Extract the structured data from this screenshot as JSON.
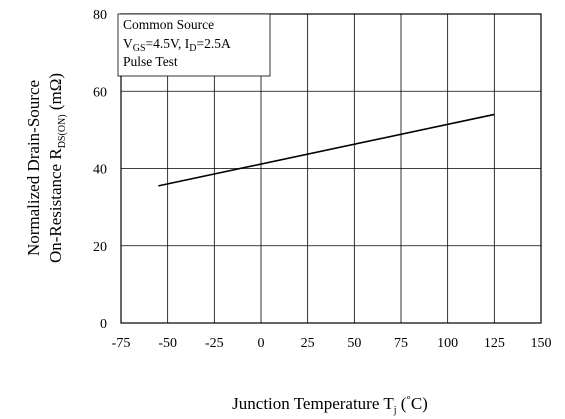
{
  "chart_data": {
    "type": "line",
    "title": "",
    "annotation": {
      "line1": "Common Source",
      "line2": {
        "v": "V",
        "v_sub": "GS",
        "v_val": "=4.5V, I",
        "i_sub": "D",
        "i_val": "=2.5A"
      },
      "line3": "Pulse Test"
    },
    "xlabel": {
      "main": "Junction Temperature  T",
      "sub": "j",
      "unit": " (",
      "degree": "°",
      "unit_end": "C)"
    },
    "ylabel": {
      "line1": "Normalized Drain-Source",
      "line2_main": "On-Resistance  R",
      "line2_sub": "DS(ON)",
      "line2_unit": " (mΩ)"
    },
    "xlim": [
      -75,
      150
    ],
    "ylim": [
      0,
      80
    ],
    "xticks": [
      -75,
      -50,
      -25,
      0,
      25,
      50,
      75,
      100,
      125,
      150
    ],
    "yticks": [
      0,
      20,
      40,
      60,
      80
    ],
    "grid": true,
    "series": [
      {
        "x": [
          -55,
          125
        ],
        "y": [
          35.5,
          54
        ]
      }
    ]
  }
}
